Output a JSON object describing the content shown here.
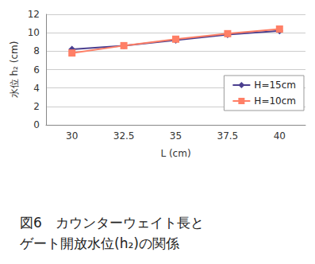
{
  "chart_data": {
    "type": "line",
    "title": "図6　カウンターウェイト長と\nゲート開放水位(h₂)の関係",
    "x_label": "L (cm)",
    "y_label": "水位 h₂ (cm)",
    "categories": [
      "30",
      "32.5",
      "35",
      "37.5",
      "40"
    ],
    "series": [
      {
        "name": "H=15cm",
        "color": "#4b3f8f",
        "marker": "diamond",
        "values": [
          8.2,
          8.6,
          9.2,
          9.8,
          10.2
        ]
      },
      {
        "name": "H=10cm",
        "color": "#ff7f66",
        "marker": "square",
        "values": [
          7.8,
          8.6,
          9.3,
          9.9,
          10.4
        ]
      }
    ],
    "ylim": [
      0,
      12
    ],
    "yticks": [
      0,
      2,
      4,
      6,
      8,
      10,
      12
    ],
    "grid": true,
    "legend": "right"
  }
}
